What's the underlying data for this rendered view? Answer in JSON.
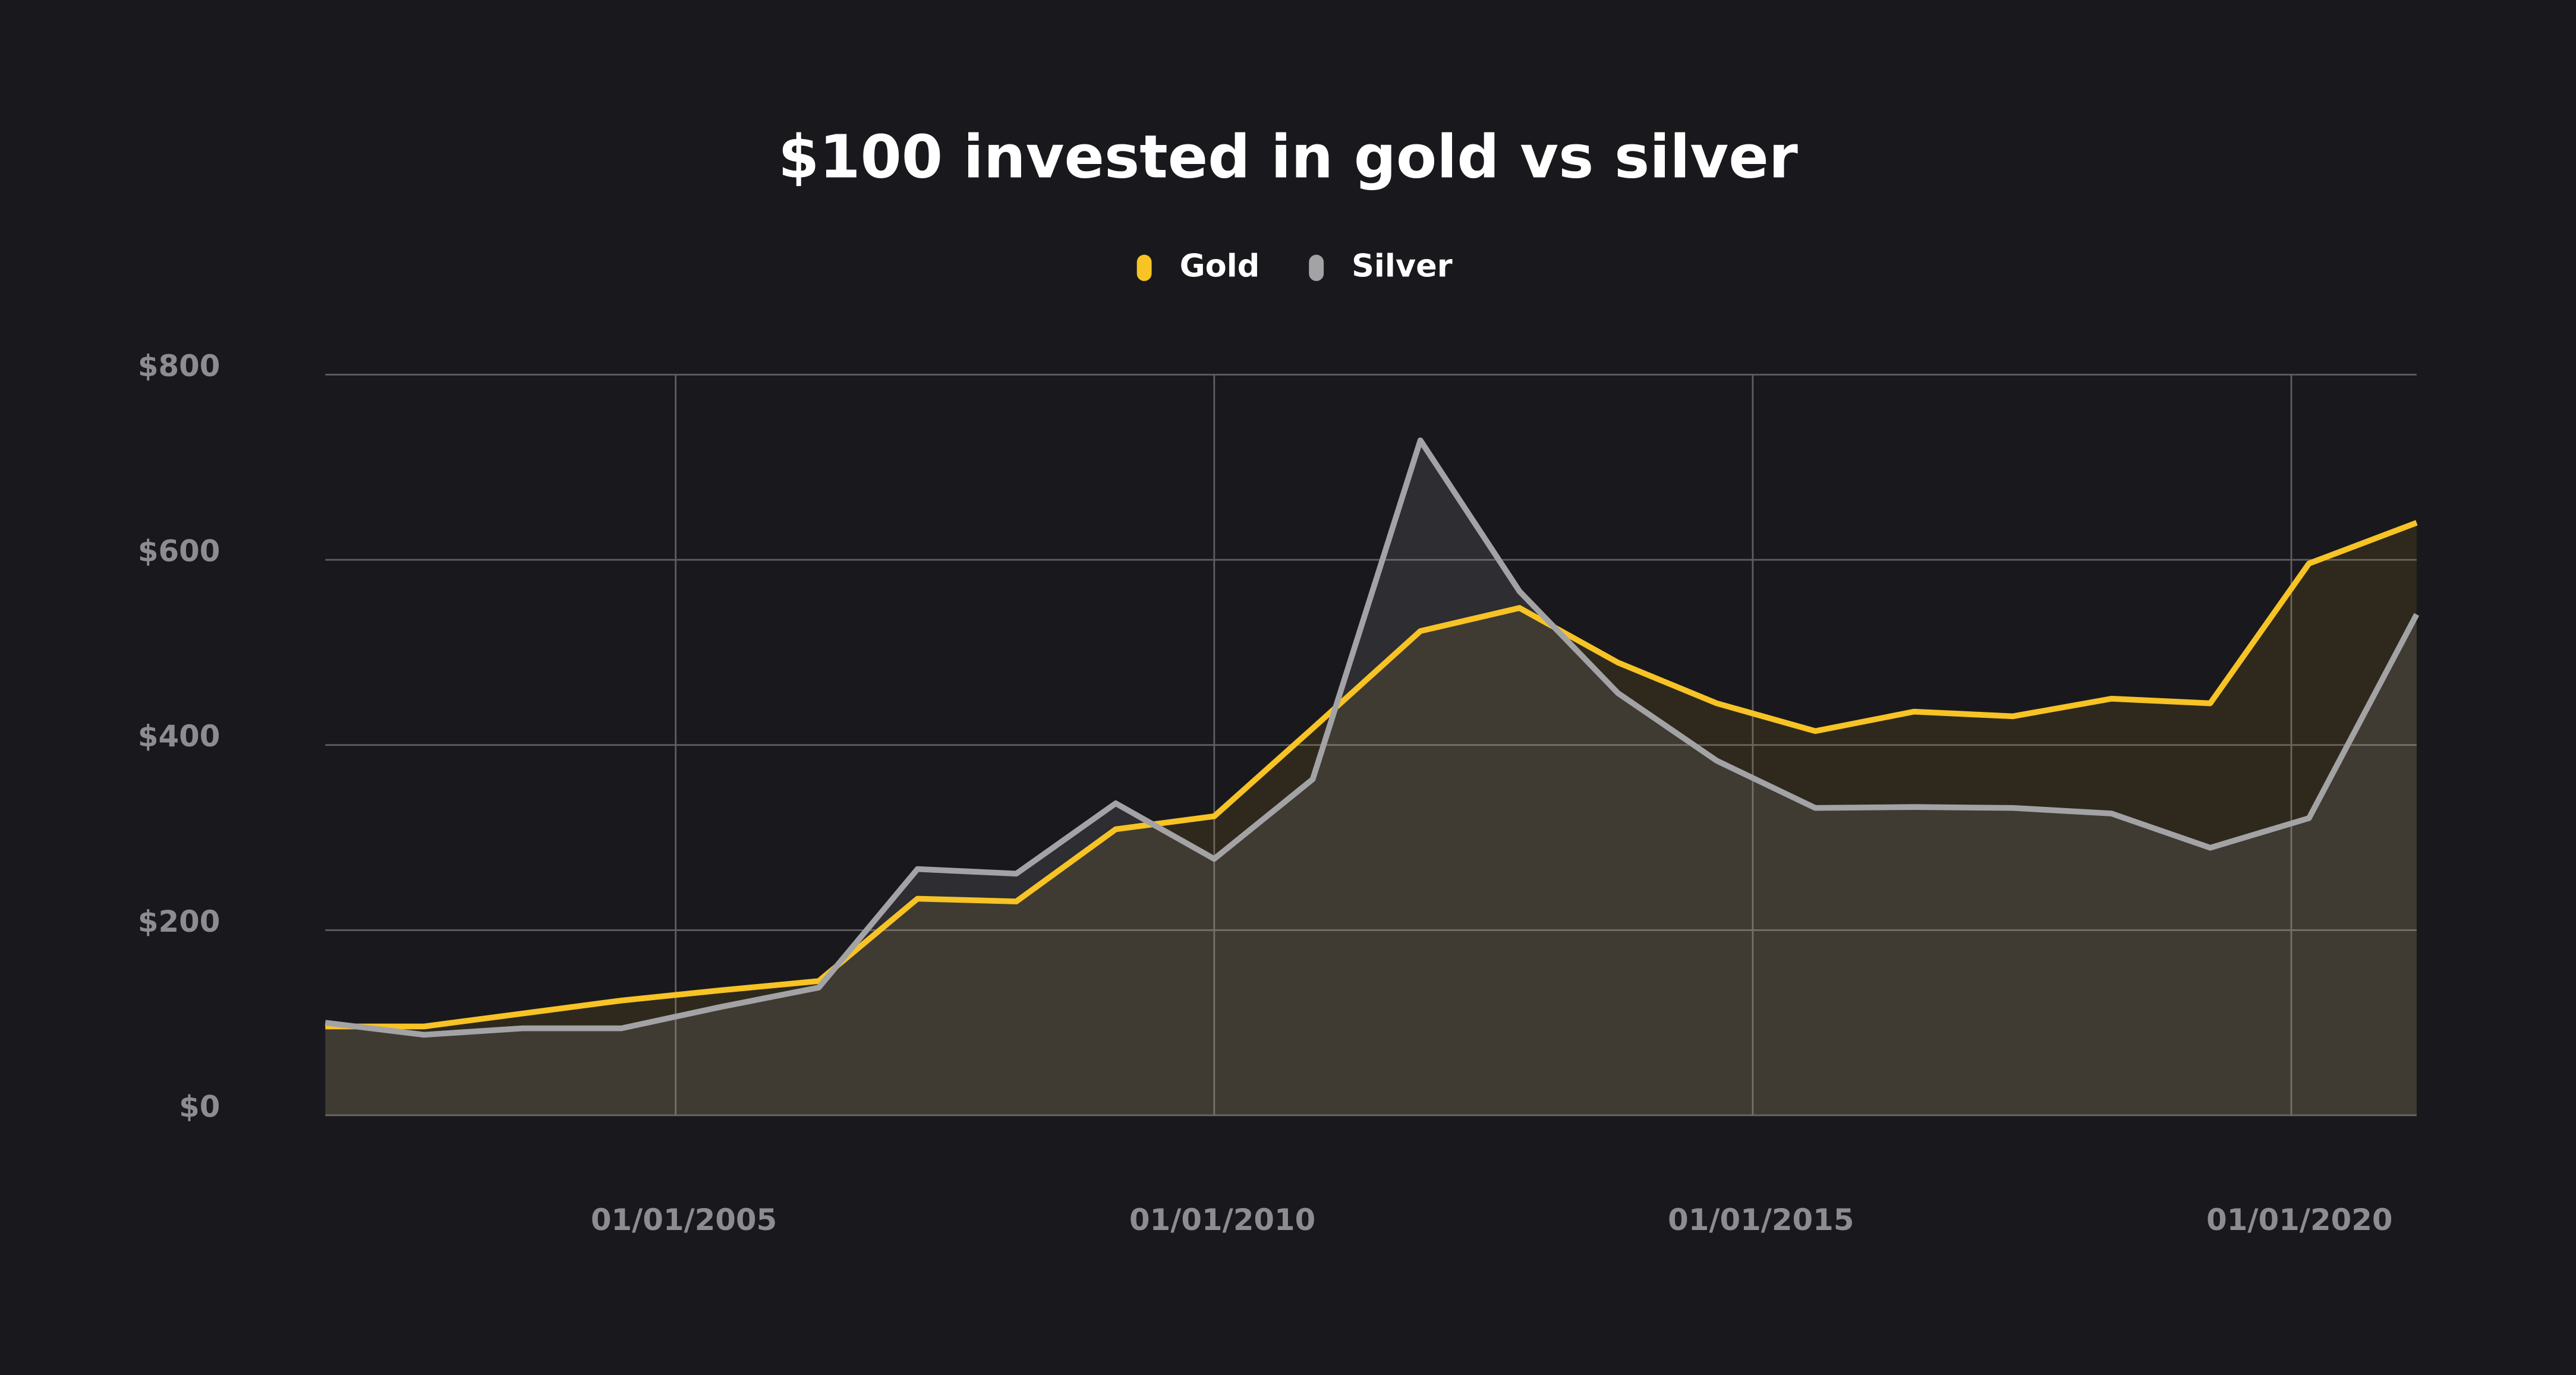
{
  "chart_data": {
    "type": "area",
    "title": "$100 invested in gold vs silver",
    "x": [
      "2001-10-01",
      "2002-09-01",
      "2003-08-01",
      "2004-07-01",
      "2005-06-01",
      "2006-05-01",
      "2007-04-01",
      "2008-03-01",
      "2009-02-01",
      "2010-01-01",
      "2010-12-01",
      "2011-12-01",
      "2012-11-01",
      "2013-10-01",
      "2014-09-01",
      "2015-08-01",
      "2016-07-01",
      "2017-06-01",
      "2018-05-01",
      "2019-04-01",
      "2020-03-01",
      "2021-03-01"
    ],
    "series": [
      {
        "name": "Gold",
        "color": "#f7c325",
        "values": [
          96,
          96,
          110,
          124,
          135,
          145,
          234,
          231,
          309,
          323,
          418,
          523,
          548,
          489,
          445,
          415,
          436,
          431,
          450,
          445,
          596,
          640
        ]
      },
      {
        "name": "Silver",
        "color": "#a3a3a6",
        "values": [
          100,
          87,
          94,
          94,
          117,
          138,
          266,
          261,
          337,
          277,
          363,
          729,
          566,
          456,
          383,
          332,
          333,
          332,
          326,
          289,
          321,
          541
        ]
      }
    ],
    "xlim": [
      "2001-10-01",
      "2021-03-01"
    ],
    "xticks": [
      {
        "value": "2005-01-01",
        "label": "01/01/2005"
      },
      {
        "value": "2010-01-01",
        "label": "01/01/2010"
      },
      {
        "value": "2015-01-01",
        "label": "01/01/2015"
      },
      {
        "value": "2020-01-01",
        "label": "01/01/2020"
      }
    ],
    "ylim": [
      0,
      800
    ],
    "yticks": [
      {
        "value": 0,
        "label": "$0"
      },
      {
        "value": 200,
        "label": "$200"
      },
      {
        "value": 400,
        "label": "$400"
      },
      {
        "value": 600,
        "label": "$600"
      },
      {
        "value": 800,
        "label": "$800"
      }
    ],
    "grid": true,
    "legend": "top"
  }
}
